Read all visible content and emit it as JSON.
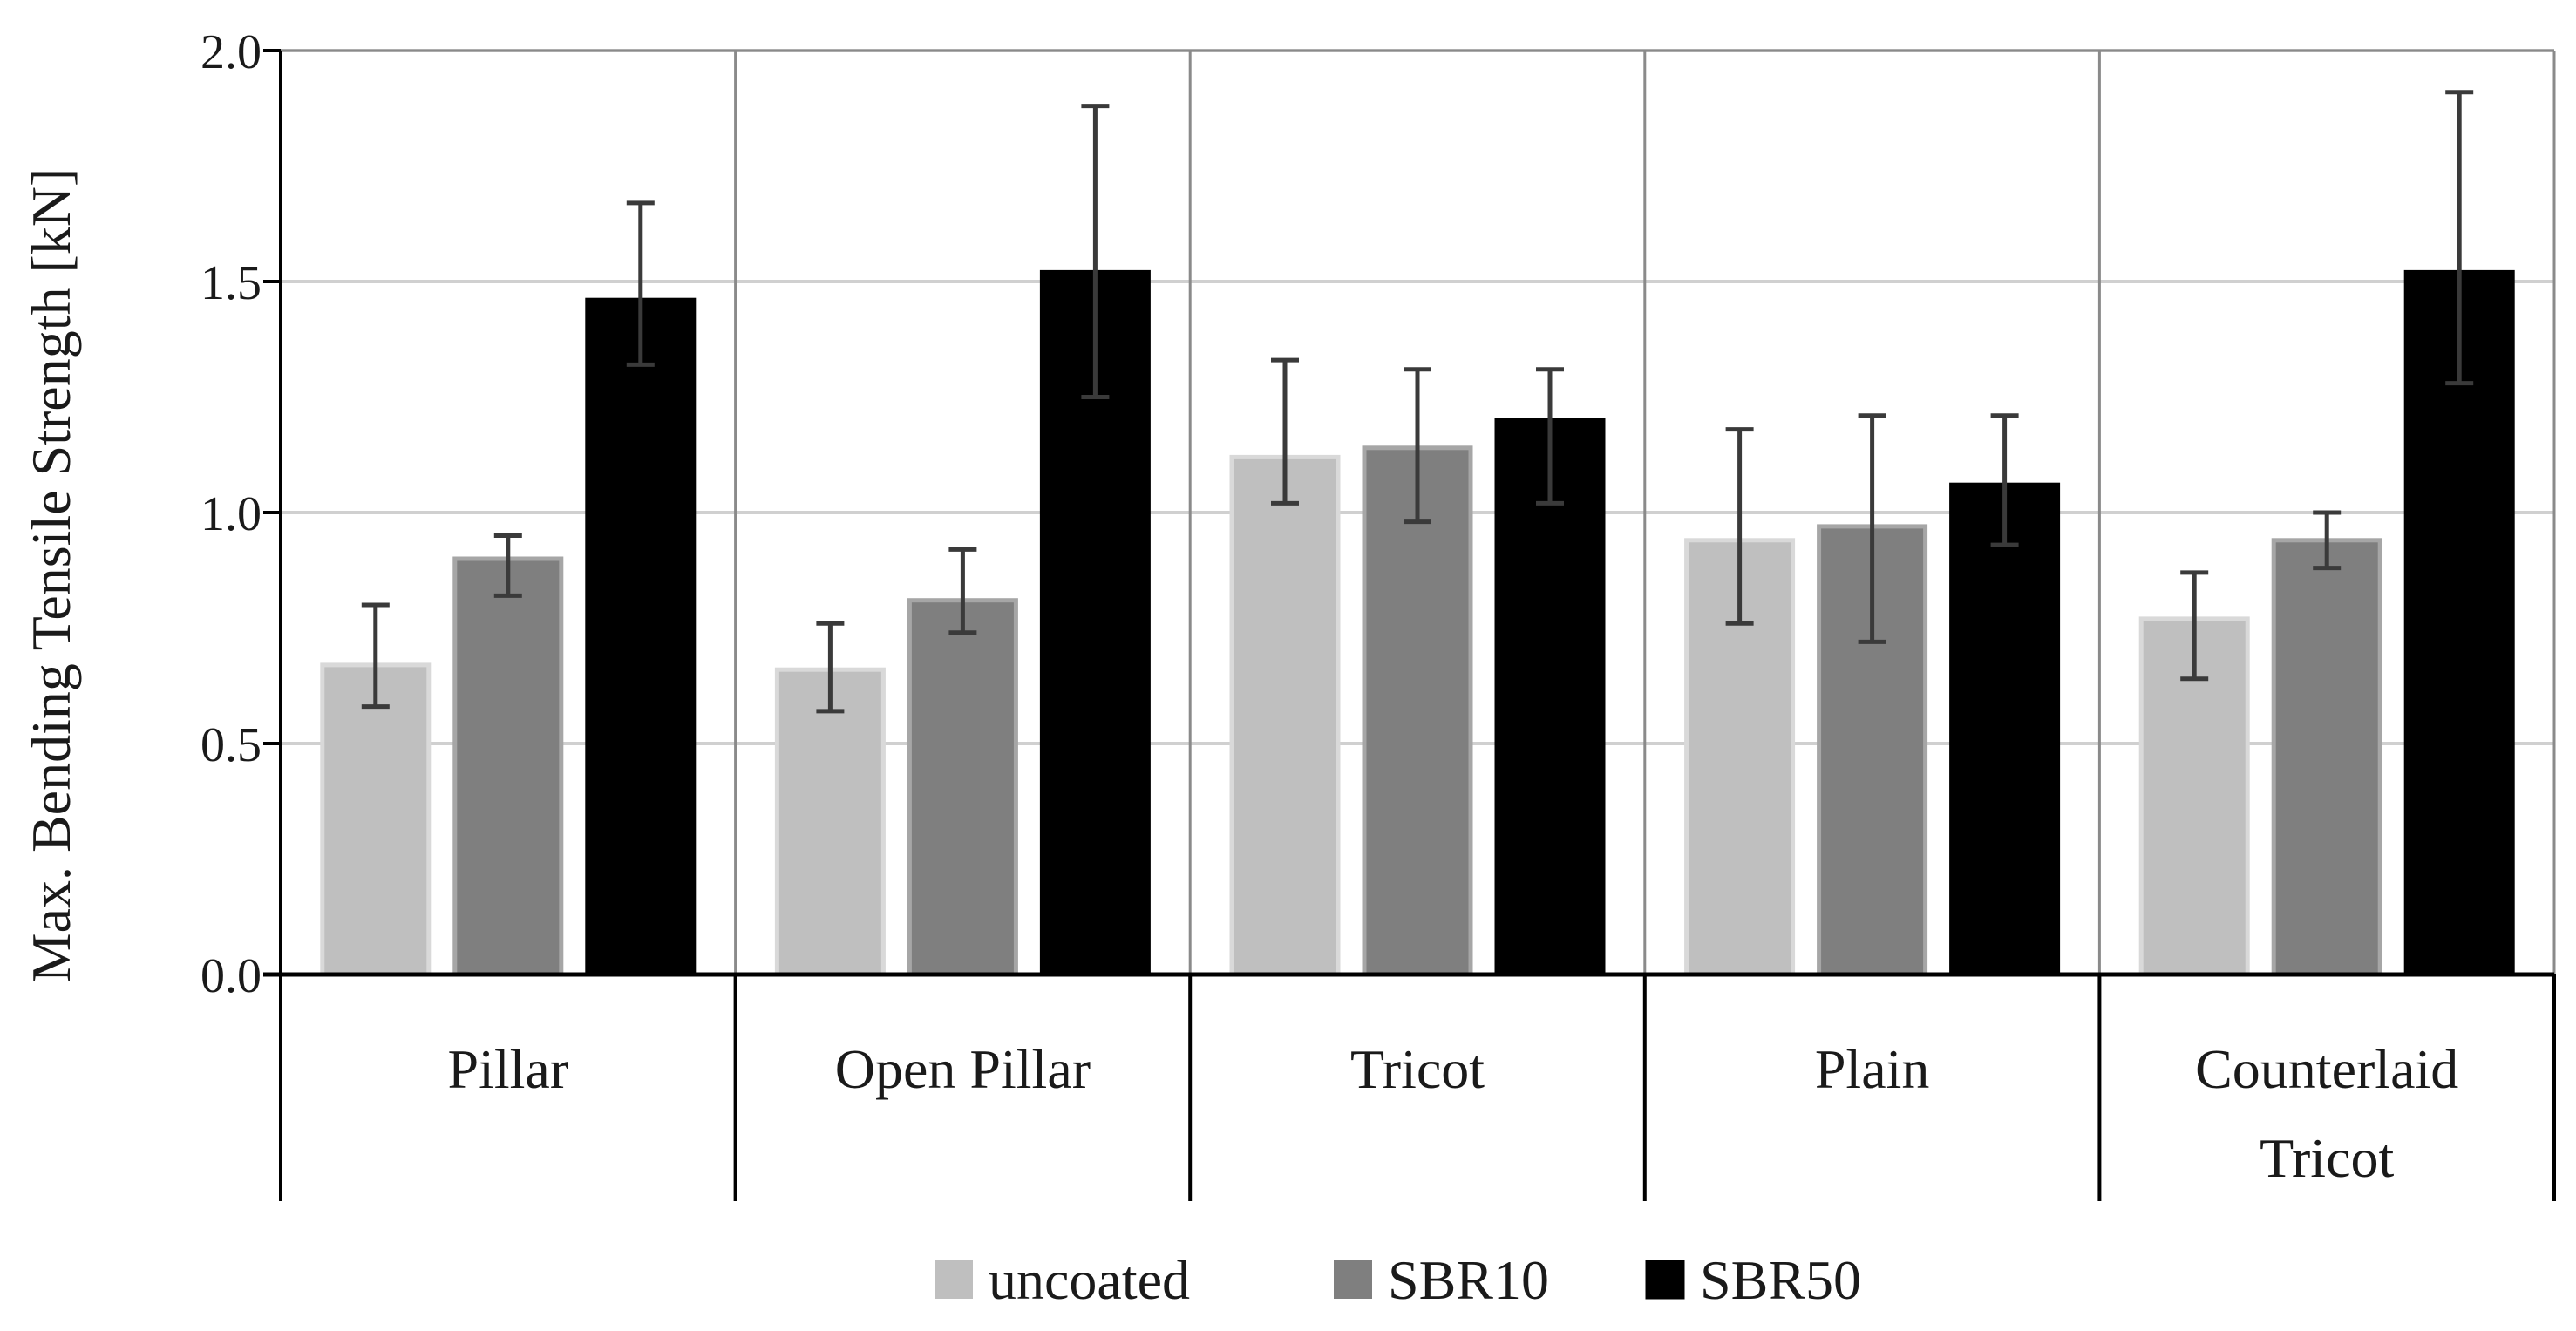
{
  "chart_data": {
    "type": "bar",
    "title": "",
    "ylabel": "Max. Bending Tensile Strength [kN]",
    "xlabel": "",
    "ylim": [
      0,
      2.0
    ],
    "yticks": [
      "0.0",
      "0.5",
      "1.0",
      "1.5",
      "2.0"
    ],
    "ytick_values": [
      0,
      0.5,
      1.0,
      1.5,
      2.0
    ],
    "grid": true,
    "legend_position": "bottom",
    "categories": [
      [
        "Pillar"
      ],
      [
        "Open Pillar"
      ],
      [
        "Tricot"
      ],
      [
        "Plain"
      ],
      [
        "Counterlaid",
        "Tricot"
      ]
    ],
    "series": [
      {
        "name": "uncoated",
        "color": "#bfbfbf",
        "values": [
          0.67,
          0.66,
          1.12,
          0.94,
          0.77
        ],
        "err_low": [
          0.58,
          0.57,
          1.02,
          0.76,
          0.64
        ],
        "err_high": [
          0.8,
          0.76,
          1.33,
          1.18,
          0.87
        ]
      },
      {
        "name": "SBR10",
        "color": "#7f7f7f",
        "values": [
          0.9,
          0.81,
          1.14,
          0.97,
          0.94
        ],
        "err_low": [
          0.82,
          0.74,
          0.98,
          0.72,
          0.88
        ],
        "err_high": [
          0.95,
          0.92,
          1.31,
          1.21,
          1.0
        ]
      },
      {
        "name": "SBR50",
        "color": "#000000",
        "values": [
          1.46,
          1.52,
          1.2,
          1.06,
          1.52
        ],
        "err_low": [
          1.32,
          1.25,
          1.02,
          0.93,
          1.28
        ],
        "err_high": [
          1.67,
          1.88,
          1.31,
          1.21,
          1.91
        ]
      }
    ]
  }
}
